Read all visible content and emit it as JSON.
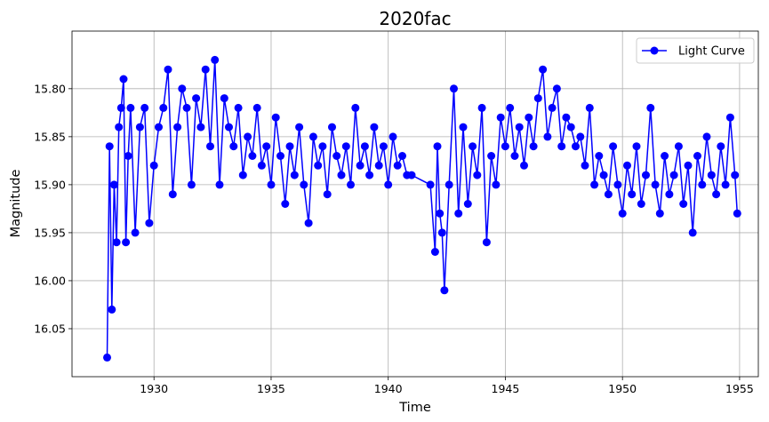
{
  "chart_data": {
    "type": "line",
    "title": "2020fac",
    "xlabel": "Time",
    "ylabel": "Magnitude",
    "xlim": [
      1926.5,
      1955.8
    ],
    "ylim": [
      16.1,
      15.74
    ],
    "y_inverted": true,
    "grid": true,
    "legend_position": "top-right",
    "x_ticks": [
      1930,
      1935,
      1940,
      1945,
      1950,
      1955
    ],
    "x_tick_labels": [
      "1930",
      "1935",
      "1940",
      "1945",
      "1950",
      "1955"
    ],
    "y_ticks": [
      15.8,
      15.85,
      15.9,
      15.95,
      16.0,
      16.05
    ],
    "y_tick_labels": [
      "15.80",
      "15.85",
      "15.90",
      "15.95",
      "16.00",
      "16.05"
    ],
    "colors": {
      "series": "#0000ff",
      "grid": "#b0b0b0",
      "axes": "#000000"
    },
    "series": [
      {
        "name": "Light Curve",
        "marker": "circle",
        "x": [
          1928.0,
          1928.1,
          1928.2,
          1928.3,
          1928.4,
          1928.5,
          1928.6,
          1928.7,
          1928.8,
          1928.9,
          1929.0,
          1929.2,
          1929.4,
          1929.6,
          1929.8,
          1930.0,
          1930.2,
          1930.4,
          1930.6,
          1930.8,
          1931.0,
          1931.2,
          1931.4,
          1931.6,
          1931.8,
          1932.0,
          1932.2,
          1932.4,
          1932.6,
          1932.8,
          1933.0,
          1933.2,
          1933.4,
          1933.6,
          1933.8,
          1934.0,
          1934.2,
          1934.4,
          1934.6,
          1934.8,
          1935.0,
          1935.2,
          1935.4,
          1935.6,
          1935.8,
          1936.0,
          1936.2,
          1936.4,
          1936.6,
          1936.8,
          1937.0,
          1937.2,
          1937.4,
          1937.6,
          1937.8,
          1938.0,
          1938.2,
          1938.4,
          1938.6,
          1938.8,
          1939.0,
          1939.2,
          1939.4,
          1939.6,
          1939.8,
          1940.0,
          1940.2,
          1940.4,
          1940.6,
          1940.8,
          1941.0,
          1941.8,
          1942.0,
          1942.1,
          1942.2,
          1942.3,
          1942.4,
          1942.6,
          1942.8,
          1943.0,
          1943.2,
          1943.4,
          1943.6,
          1943.8,
          1944.0,
          1944.2,
          1944.4,
          1944.6,
          1944.8,
          1945.0,
          1945.2,
          1945.4,
          1945.6,
          1945.8,
          1946.0,
          1946.2,
          1946.4,
          1946.6,
          1946.8,
          1947.0,
          1947.2,
          1947.4,
          1947.6,
          1947.8,
          1948.0,
          1948.2,
          1948.4,
          1948.6,
          1948.8,
          1949.0,
          1949.2,
          1949.4,
          1949.6,
          1949.8,
          1950.0,
          1950.2,
          1950.4,
          1950.6,
          1950.8,
          1951.0,
          1951.2,
          1951.4,
          1951.6,
          1951.8,
          1952.0,
          1952.2,
          1952.4,
          1952.6,
          1952.8,
          1953.0,
          1953.2,
          1953.4,
          1953.6,
          1953.8,
          1954.0,
          1954.2,
          1954.4,
          1954.6,
          1954.8,
          1954.9
        ],
        "y": [
          16.08,
          15.86,
          16.03,
          15.9,
          15.96,
          15.84,
          15.82,
          15.79,
          15.96,
          15.87,
          15.82,
          15.95,
          15.84,
          15.82,
          15.94,
          15.88,
          15.84,
          15.82,
          15.78,
          15.91,
          15.84,
          15.8,
          15.82,
          15.9,
          15.81,
          15.84,
          15.78,
          15.86,
          15.77,
          15.9,
          15.81,
          15.84,
          15.86,
          15.82,
          15.89,
          15.85,
          15.87,
          15.82,
          15.88,
          15.86,
          15.9,
          15.83,
          15.87,
          15.92,
          15.86,
          15.89,
          15.84,
          15.9,
          15.94,
          15.85,
          15.88,
          15.86,
          15.91,
          15.84,
          15.87,
          15.89,
          15.86,
          15.9,
          15.82,
          15.88,
          15.86,
          15.89,
          15.84,
          15.88,
          15.86,
          15.9,
          15.85,
          15.88,
          15.87,
          15.89,
          15.89,
          15.9,
          15.97,
          15.86,
          15.93,
          15.95,
          16.01,
          15.9,
          15.8,
          15.93,
          15.84,
          15.92,
          15.86,
          15.89,
          15.82,
          15.96,
          15.87,
          15.9,
          15.83,
          15.86,
          15.82,
          15.87,
          15.84,
          15.88,
          15.83,
          15.86,
          15.81,
          15.78,
          15.85,
          15.82,
          15.8,
          15.86,
          15.83,
          15.84,
          15.86,
          15.85,
          15.88,
          15.82,
          15.9,
          15.87,
          15.89,
          15.91,
          15.86,
          15.9,
          15.93,
          15.88,
          15.91,
          15.86,
          15.92,
          15.89,
          15.82,
          15.9,
          15.93,
          15.87,
          15.91,
          15.89,
          15.86,
          15.92,
          15.88,
          15.95,
          15.87,
          15.9,
          15.85,
          15.89,
          15.91,
          15.86,
          15.9,
          15.83,
          15.89,
          15.93
        ]
      }
    ]
  }
}
